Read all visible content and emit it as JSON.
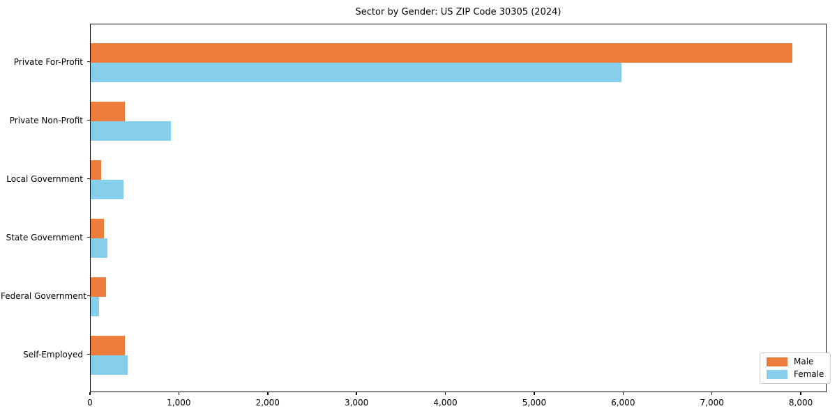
{
  "chart_data": {
    "type": "bar",
    "orientation": "horizontal",
    "title": "Sector by Gender: US ZIP Code 30305 (2024)",
    "categories": [
      "Private For-Profit",
      "Private Non-Profit",
      "Local Government",
      "State Government",
      "Federal Government",
      "Self-Employed"
    ],
    "series": [
      {
        "name": "Male",
        "color": "#EC7D3C",
        "values": [
          7900,
          385,
          115,
          150,
          175,
          385
        ]
      },
      {
        "name": "Female",
        "color": "#87CEEB",
        "values": [
          5970,
          900,
          370,
          185,
          90,
          415
        ]
      }
    ],
    "xlabel": "",
    "ylabel": "",
    "xlim": [
      0,
      8290
    ],
    "xticks": {
      "values": [
        0,
        1000,
        2000,
        3000,
        4000,
        5000,
        6000,
        7000,
        8000
      ],
      "labels": [
        "0",
        "1,000",
        "2,000",
        "3,000",
        "4,000",
        "5,000",
        "6,000",
        "7,000",
        "8,000"
      ]
    },
    "grid": false,
    "legend": {
      "position": "lower right"
    }
  }
}
